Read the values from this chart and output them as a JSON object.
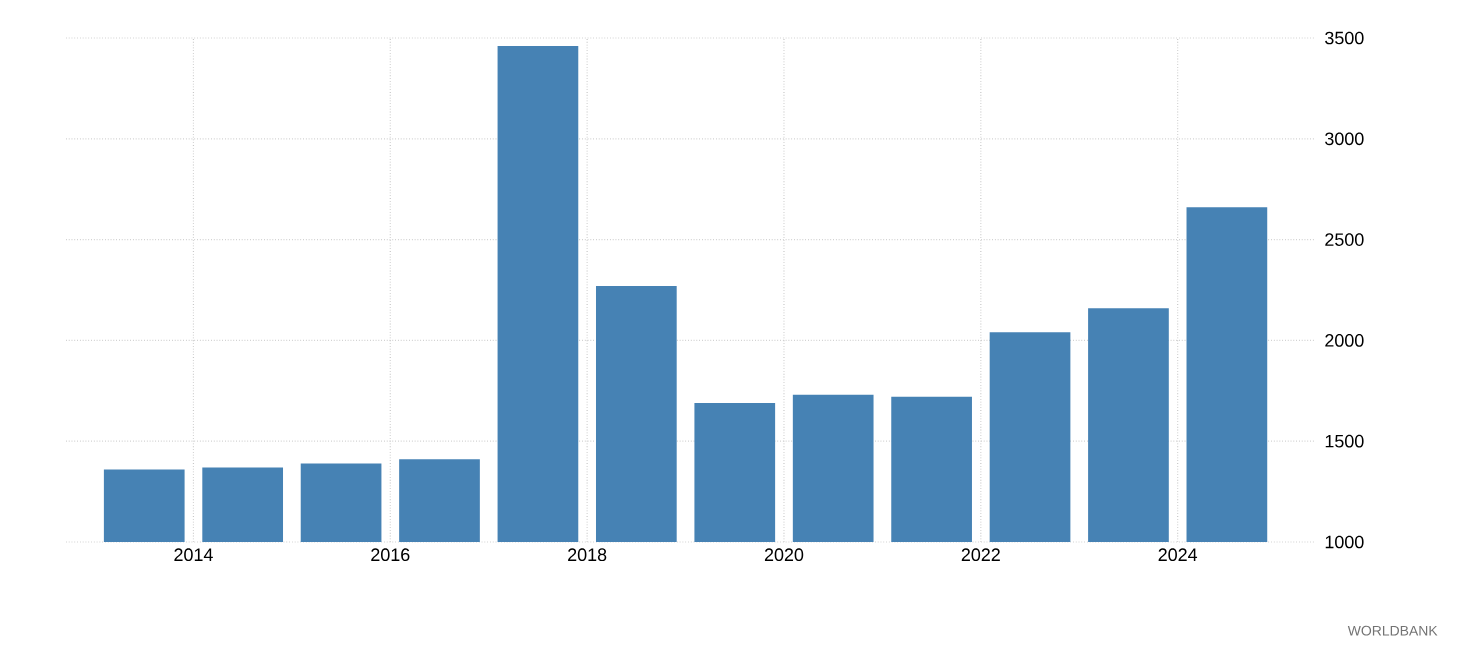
{
  "chart_data": {
    "type": "bar",
    "x": [
      "2013-07",
      "2014-07",
      "2015-07",
      "2016-07",
      "2017-07",
      "2018-07",
      "2019-07",
      "2020-07",
      "2021-07",
      "2022-07",
      "2023-07",
      "2024-07"
    ],
    "values": [
      1360,
      1370,
      1390,
      1410,
      3460,
      2270,
      1690,
      1730,
      1720,
      2040,
      2160,
      2660
    ],
    "color": "#4682b4",
    "xlim": [
      "2012-09-15",
      "2025-05-20"
    ],
    "xticks": [
      {
        "value": "2014",
        "label": "2014"
      },
      {
        "value": "2016",
        "label": "2016"
      },
      {
        "value": "2018",
        "label": "2018"
      },
      {
        "value": "2020",
        "label": "2020"
      },
      {
        "value": "2022",
        "label": "2022"
      },
      {
        "value": "2024",
        "label": "2024"
      }
    ],
    "ylim": [
      1000,
      3500
    ],
    "yticks": [
      1000,
      1500,
      2000,
      2500,
      3000,
      3500
    ],
    "grid": true,
    "annotations": [
      "WORLDBANK"
    ]
  }
}
